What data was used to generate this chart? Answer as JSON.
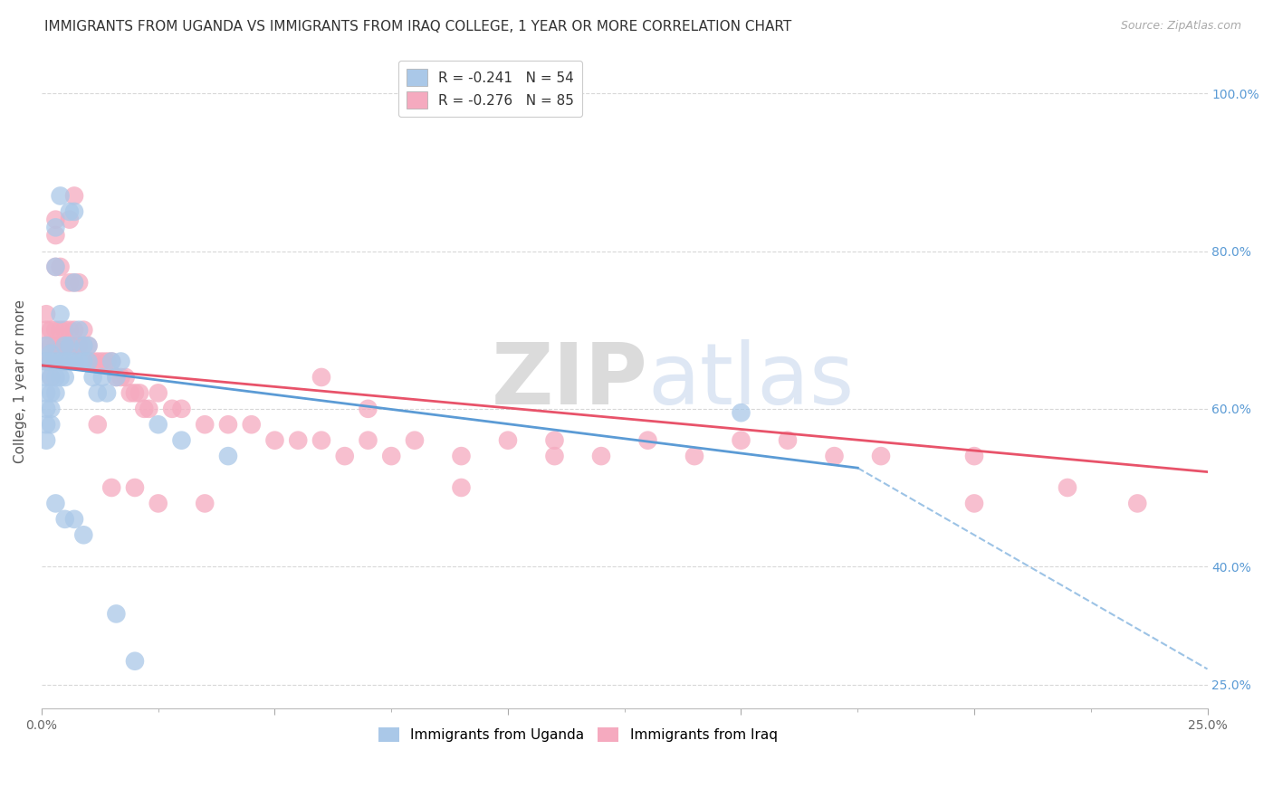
{
  "title": "IMMIGRANTS FROM UGANDA VS IMMIGRANTS FROM IRAQ COLLEGE, 1 YEAR OR MORE CORRELATION CHART",
  "source": "Source: ZipAtlas.com",
  "ylabel": "College, 1 year or more",
  "xlim": [
    0.0,
    0.25
  ],
  "ylim": [
    0.22,
    1.05
  ],
  "legend1_label": "R = -0.241   N = 54",
  "legend2_label": "R = -0.276   N = 85",
  "legend1_color": "#aac8e8",
  "legend2_color": "#f5aabf",
  "trendline1_color": "#5b9bd5",
  "trendline2_color": "#e8536a",
  "background_color": "#ffffff",
  "grid_color": "#d8d8d8",
  "title_fontsize": 11,
  "axis_label_fontsize": 11,
  "tick_fontsize": 10,
  "watermark_zip": "ZIP",
  "watermark_atlas": "atlas",
  "uganda_x": [
    0.001,
    0.001,
    0.001,
    0.001,
    0.001,
    0.001,
    0.001,
    0.002,
    0.002,
    0.002,
    0.002,
    0.002,
    0.002,
    0.003,
    0.003,
    0.003,
    0.003,
    0.003,
    0.004,
    0.004,
    0.004,
    0.004,
    0.005,
    0.005,
    0.005,
    0.006,
    0.006,
    0.006,
    0.007,
    0.007,
    0.007,
    0.008,
    0.008,
    0.009,
    0.009,
    0.01,
    0.01,
    0.011,
    0.012,
    0.013,
    0.014,
    0.015,
    0.016,
    0.017,
    0.003,
    0.005,
    0.007,
    0.009,
    0.025,
    0.03,
    0.04,
    0.15,
    0.016,
    0.02
  ],
  "uganda_y": [
    0.68,
    0.66,
    0.64,
    0.62,
    0.6,
    0.58,
    0.56,
    0.67,
    0.66,
    0.64,
    0.62,
    0.6,
    0.58,
    0.83,
    0.78,
    0.66,
    0.64,
    0.62,
    0.87,
    0.72,
    0.66,
    0.64,
    0.68,
    0.66,
    0.64,
    0.85,
    0.68,
    0.66,
    0.85,
    0.76,
    0.66,
    0.7,
    0.66,
    0.68,
    0.66,
    0.68,
    0.66,
    0.64,
    0.62,
    0.64,
    0.62,
    0.66,
    0.64,
    0.66,
    0.48,
    0.46,
    0.46,
    0.44,
    0.58,
    0.56,
    0.54,
    0.595,
    0.34,
    0.28
  ],
  "iraq_x": [
    0.001,
    0.001,
    0.001,
    0.001,
    0.002,
    0.002,
    0.002,
    0.002,
    0.003,
    0.003,
    0.003,
    0.003,
    0.003,
    0.004,
    0.004,
    0.004,
    0.005,
    0.005,
    0.005,
    0.006,
    0.006,
    0.006,
    0.007,
    0.007,
    0.007,
    0.007,
    0.008,
    0.008,
    0.009,
    0.009,
    0.01,
    0.01,
    0.011,
    0.012,
    0.013,
    0.014,
    0.015,
    0.016,
    0.017,
    0.018,
    0.019,
    0.02,
    0.021,
    0.022,
    0.023,
    0.025,
    0.028,
    0.03,
    0.035,
    0.04,
    0.045,
    0.05,
    0.055,
    0.06,
    0.065,
    0.07,
    0.075,
    0.08,
    0.09,
    0.1,
    0.11,
    0.12,
    0.13,
    0.14,
    0.15,
    0.16,
    0.17,
    0.18,
    0.2,
    0.22,
    0.003,
    0.006,
    0.008,
    0.01,
    0.012,
    0.015,
    0.02,
    0.025,
    0.035,
    0.06,
    0.07,
    0.09,
    0.11,
    0.2,
    0.235
  ],
  "iraq_y": [
    0.72,
    0.7,
    0.68,
    0.66,
    0.7,
    0.68,
    0.66,
    0.64,
    0.82,
    0.78,
    0.7,
    0.68,
    0.66,
    0.78,
    0.7,
    0.68,
    0.7,
    0.68,
    0.66,
    0.76,
    0.7,
    0.68,
    0.87,
    0.76,
    0.7,
    0.68,
    0.68,
    0.66,
    0.7,
    0.68,
    0.68,
    0.66,
    0.66,
    0.66,
    0.66,
    0.66,
    0.66,
    0.64,
    0.64,
    0.64,
    0.62,
    0.62,
    0.62,
    0.6,
    0.6,
    0.62,
    0.6,
    0.6,
    0.58,
    0.58,
    0.58,
    0.56,
    0.56,
    0.56,
    0.54,
    0.56,
    0.54,
    0.56,
    0.54,
    0.56,
    0.56,
    0.54,
    0.56,
    0.54,
    0.56,
    0.56,
    0.54,
    0.54,
    0.54,
    0.5,
    0.84,
    0.84,
    0.76,
    0.66,
    0.58,
    0.5,
    0.5,
    0.48,
    0.48,
    0.64,
    0.6,
    0.5,
    0.54,
    0.48,
    0.48
  ],
  "trendline1_x0": 0.0,
  "trendline1_y0": 0.655,
  "trendline1_x1": 0.175,
  "trendline1_y1": 0.525,
  "trendline1_dash_x0": 0.175,
  "trendline1_dash_y0": 0.525,
  "trendline1_dash_x1": 0.25,
  "trendline1_dash_y1": 0.27,
  "trendline2_x0": 0.0,
  "trendline2_y0": 0.655,
  "trendline2_x1": 0.25,
  "trendline2_y1": 0.52
}
